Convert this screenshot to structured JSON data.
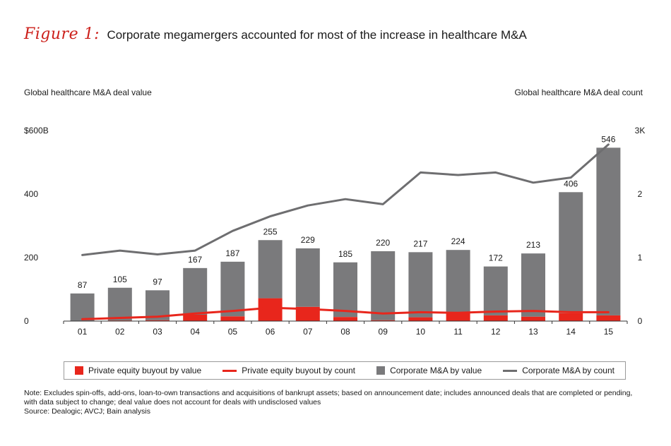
{
  "figure": {
    "label": "Figure 1:",
    "title": "Corporate megamergers accounted for most of the increase in healthcare M&A"
  },
  "axes": {
    "left_title": "Global healthcare M&A deal value",
    "right_title": "Global healthcare M&A deal count",
    "left_ticks": [
      "0",
      "200",
      "400",
      "$600B"
    ],
    "right_ticks": [
      "0",
      "1",
      "2",
      "3K"
    ]
  },
  "legend": {
    "pe_value": "Private equity buyout by value",
    "pe_count": "Private equity buyout by count",
    "corp_value": "Corporate M&A by value",
    "corp_count": "Corporate M&A by count"
  },
  "notes": {
    "note": "Note: Excludes spin-offs, add-ons, loan-to-own transactions and acquisitions of bankrupt assets; based on announcement date; includes announced deals that are completed or pending, with data subject to change; deal value does not account for deals with undisclosed values",
    "source": "Source: Dealogic; AVCJ; Bain analysis"
  },
  "colors": {
    "red": "#e8261c",
    "bar_gray": "#7a7a7c",
    "line_gray": "#6e6e70",
    "axis": "#333333"
  },
  "chart_data": {
    "type": "bar",
    "categories": [
      "01",
      "02",
      "03",
      "04",
      "05",
      "06",
      "07",
      "08",
      "09",
      "10",
      "11",
      "12",
      "13",
      "14",
      "15"
    ],
    "totals": [
      87,
      105,
      97,
      167,
      187,
      255,
      229,
      185,
      220,
      217,
      224,
      172,
      213,
      406,
      546
    ],
    "ylim_left": [
      0,
      600
    ],
    "ylim_right": [
      0,
      3000
    ],
    "series": [
      {
        "name": "Private equity buyout by value",
        "kind": "bar",
        "axis": "left",
        "values": [
          1,
          2,
          3,
          20,
          15,
          72,
          45,
          13,
          3,
          12,
          28,
          18,
          14,
          25,
          18
        ]
      },
      {
        "name": "Corporate M&A by value",
        "kind": "bar",
        "axis": "left",
        "values": [
          86,
          103,
          94,
          147,
          172,
          183,
          184,
          172,
          217,
          205,
          196,
          154,
          199,
          381,
          528
        ]
      },
      {
        "name": "Private equity buyout by count",
        "kind": "line",
        "axis": "right",
        "values": [
          30,
          50,
          70,
          120,
          160,
          210,
          190,
          160,
          120,
          140,
          130,
          150,
          160,
          140,
          140
        ]
      },
      {
        "name": "Corporate M&A by count",
        "kind": "line",
        "axis": "right",
        "values": [
          1040,
          1110,
          1050,
          1110,
          1420,
          1650,
          1820,
          1920,
          1840,
          2340,
          2300,
          2340,
          2180,
          2260,
          2780
        ]
      }
    ]
  }
}
